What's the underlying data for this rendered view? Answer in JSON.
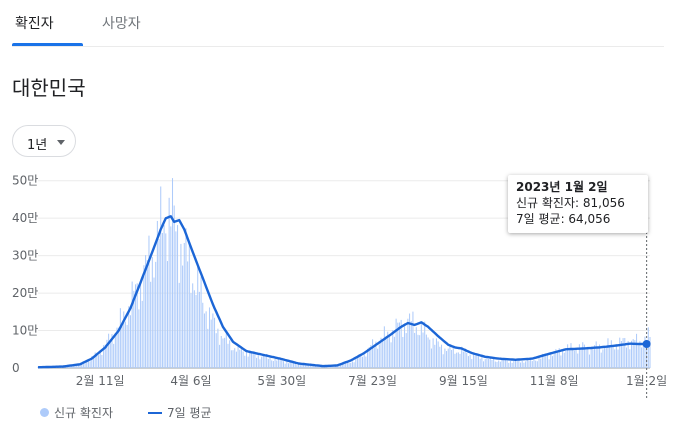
{
  "tabs": [
    {
      "label": "확진자",
      "active": true
    },
    {
      "label": "사망자",
      "active": false
    }
  ],
  "location": "대한민국",
  "range_selector": {
    "selected": "1년"
  },
  "tooltip": {
    "date": "2023년 1월 2일",
    "new_cases_label": "신규 확진자: 81,056",
    "avg_label": "7일 평균: 64,056"
  },
  "legend": {
    "new_cases": "신규 확진자",
    "seven_day_avg": "7일 평균"
  },
  "colors": {
    "bars": "#aecbfa",
    "line": "#1c66d6",
    "accent": "#1a73e8"
  },
  "chart_data": {
    "type": "bar",
    "title": "",
    "xlabel": "",
    "ylabel": "",
    "y_unit_ticks": [
      "0",
      "10만",
      "20만",
      "30만",
      "40만",
      "50만"
    ],
    "y_tick_values": [
      0,
      100000,
      200000,
      300000,
      400000,
      500000
    ],
    "ylim": [
      0,
      550000
    ],
    "x_tick_labels": [
      "2월 11일",
      "4월 6일",
      "5월 30일",
      "7월 23일",
      "9월 15일",
      "11월 8일",
      "1월 2일"
    ],
    "x_tick_day_index": [
      37,
      91,
      145,
      199,
      253,
      307,
      362
    ],
    "x_range_days": [
      0,
      364
    ],
    "grid": "horizontal",
    "legend_position": "bottom-left",
    "series": [
      {
        "name": "신규 확진자",
        "kind": "bar",
        "anchors_day_value": [
          [
            0,
            2000
          ],
          [
            15,
            4000
          ],
          [
            25,
            10000
          ],
          [
            32,
            25000
          ],
          [
            40,
            60000
          ],
          [
            48,
            110000
          ],
          [
            55,
            170000
          ],
          [
            62,
            240000
          ],
          [
            68,
            300000
          ],
          [
            72,
            350000
          ],
          [
            76,
            400000
          ],
          [
            79,
            420000
          ],
          [
            81,
            380000
          ],
          [
            86,
            320000
          ],
          [
            92,
            250000
          ],
          [
            98,
            180000
          ],
          [
            104,
            120000
          ],
          [
            110,
            80000
          ],
          [
            118,
            50000
          ],
          [
            126,
            40000
          ],
          [
            134,
            30000
          ],
          [
            144,
            20000
          ],
          [
            155,
            10000
          ],
          [
            170,
            6000
          ],
          [
            180,
            8000
          ],
          [
            188,
            20000
          ],
          [
            195,
            45000
          ],
          [
            202,
            70000
          ],
          [
            210,
            95000
          ],
          [
            216,
            115000
          ],
          [
            220,
            125000
          ],
          [
            226,
            110000
          ],
          [
            232,
            85000
          ],
          [
            238,
            60000
          ],
          [
            244,
            50000
          ],
          [
            252,
            45000
          ],
          [
            258,
            35000
          ],
          [
            266,
            25000
          ],
          [
            274,
            20000
          ],
          [
            284,
            18000
          ],
          [
            294,
            20000
          ],
          [
            304,
            35000
          ],
          [
            314,
            50000
          ],
          [
            324,
            55000
          ],
          [
            334,
            55000
          ],
          [
            344,
            65000
          ],
          [
            352,
            72000
          ],
          [
            358,
            68000
          ],
          [
            362,
            81000
          ]
        ]
      },
      {
        "name": "7일 평균",
        "kind": "line",
        "anchors_day_value": [
          [
            0,
            2000
          ],
          [
            15,
            4000
          ],
          [
            25,
            10000
          ],
          [
            32,
            25000
          ],
          [
            40,
            55000
          ],
          [
            48,
            100000
          ],
          [
            55,
            160000
          ],
          [
            62,
            240000
          ],
          [
            68,
            310000
          ],
          [
            73,
            370000
          ],
          [
            76,
            400000
          ],
          [
            79,
            405000
          ],
          [
            81,
            390000
          ],
          [
            84,
            395000
          ],
          [
            87,
            370000
          ],
          [
            92,
            310000
          ],
          [
            98,
            240000
          ],
          [
            104,
            170000
          ],
          [
            110,
            110000
          ],
          [
            116,
            70000
          ],
          [
            124,
            45000
          ],
          [
            134,
            35000
          ],
          [
            144,
            25000
          ],
          [
            155,
            12000
          ],
          [
            170,
            5000
          ],
          [
            178,
            7000
          ],
          [
            186,
            20000
          ],
          [
            194,
            40000
          ],
          [
            202,
            65000
          ],
          [
            210,
            90000
          ],
          [
            216,
            110000
          ],
          [
            220,
            120000
          ],
          [
            224,
            115000
          ],
          [
            228,
            122000
          ],
          [
            232,
            110000
          ],
          [
            238,
            85000
          ],
          [
            244,
            62000
          ],
          [
            248,
            55000
          ],
          [
            252,
            52000
          ],
          [
            258,
            40000
          ],
          [
            266,
            30000
          ],
          [
            274,
            25000
          ],
          [
            284,
            22000
          ],
          [
            294,
            25000
          ],
          [
            304,
            38000
          ],
          [
            314,
            50000
          ],
          [
            324,
            52000
          ],
          [
            334,
            55000
          ],
          [
            344,
            60000
          ],
          [
            352,
            65000
          ],
          [
            358,
            64000
          ],
          [
            362,
            64056
          ]
        ]
      }
    ],
    "highlight": {
      "day_index": 362,
      "new_cases": 81056,
      "seven_day_avg": 64056
    }
  }
}
